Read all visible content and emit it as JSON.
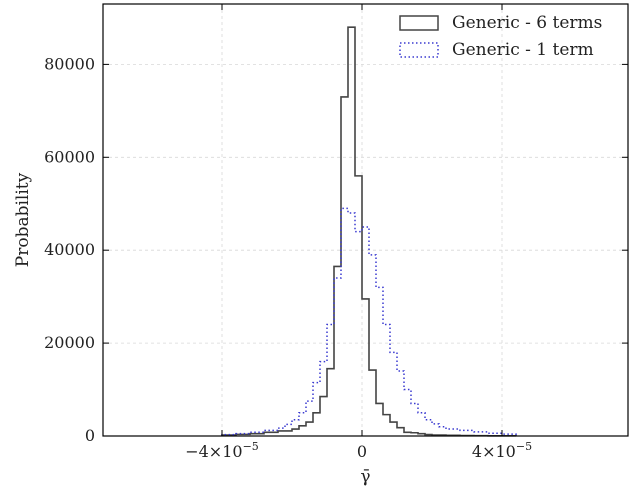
{
  "chart_data": {
    "type": "histogram",
    "xlabel": "γ̄",
    "ylabel": "Probability",
    "xlim": [
      -7.4e-05,
      7.6e-05
    ],
    "ylim": [
      0,
      93000
    ],
    "grid": true,
    "legend_position": "top-right",
    "x_ticks": [
      {
        "value": -4e-05,
        "label": "−4×10",
        "exp": "−5"
      },
      {
        "value": 0,
        "label": "0",
        "exp": ""
      },
      {
        "value": 4e-05,
        "label": "4×10",
        "exp": "−5"
      }
    ],
    "y_ticks": [
      {
        "value": 0,
        "label": "0"
      },
      {
        "value": 20000,
        "label": "20000"
      },
      {
        "value": 40000,
        "label": "40000"
      },
      {
        "value": 60000,
        "label": "60000"
      },
      {
        "value": 80000,
        "label": "80000"
      }
    ],
    "series": [
      {
        "name": "Generic - 6 terms",
        "color": "#444444",
        "style": "solid",
        "bin_edges": [
          -4e-05,
          -3.6e-05,
          -3.2e-05,
          -2.8e-05,
          -2.4e-05,
          -2e-05,
          -1.8e-05,
          -1.6e-05,
          -1.4e-05,
          -1.2e-05,
          -1e-05,
          -8e-06,
          -6e-06,
          -4e-06,
          -2e-06,
          0.0,
          2e-06,
          4e-06,
          6e-06,
          8e-06,
          1e-05,
          1.2e-05,
          1.4e-05,
          1.6e-05,
          1.8e-05,
          2e-05,
          2.4e-05,
          2.8e-05,
          3.2e-05,
          3.6e-05,
          4e-05,
          4.4e-05
        ],
        "values": [
          200,
          350,
          500,
          800,
          1100,
          1500,
          2200,
          3000,
          5000,
          8500,
          14500,
          36500,
          73000,
          88000,
          56000,
          29500,
          14200,
          7000,
          4600,
          3000,
          1800,
          800,
          700,
          500,
          300,
          200,
          150,
          100,
          80,
          50,
          30
        ]
      },
      {
        "name": "Generic - 1 term",
        "color": "#3a3ad0",
        "style": "dotted",
        "bin_edges": [
          -4e-05,
          -3.6e-05,
          -3.2e-05,
          -2.8e-05,
          -2.4e-05,
          -2.2e-05,
          -2e-05,
          -1.8e-05,
          -1.6e-05,
          -1.4e-05,
          -1.2e-05,
          -1e-05,
          -8e-06,
          -6e-06,
          -4e-06,
          -2e-06,
          0.0,
          2e-06,
          4e-06,
          6e-06,
          8e-06,
          1e-05,
          1.2e-05,
          1.4e-05,
          1.6e-05,
          1.8e-05,
          2e-05,
          2.2e-05,
          2.4e-05,
          2.8e-05,
          3.2e-05,
          3.6e-05,
          4e-05,
          4.4e-05
        ],
        "values": [
          300,
          500,
          800,
          1200,
          1700,
          2500,
          3500,
          5000,
          7500,
          11500,
          16000,
          24000,
          34000,
          49000,
          48000,
          44000,
          45000,
          39000,
          32000,
          24000,
          18000,
          14000,
          10000,
          7000,
          5000,
          3500,
          2600,
          2000,
          1500,
          1200,
          900,
          600,
          400
        ]
      }
    ]
  }
}
